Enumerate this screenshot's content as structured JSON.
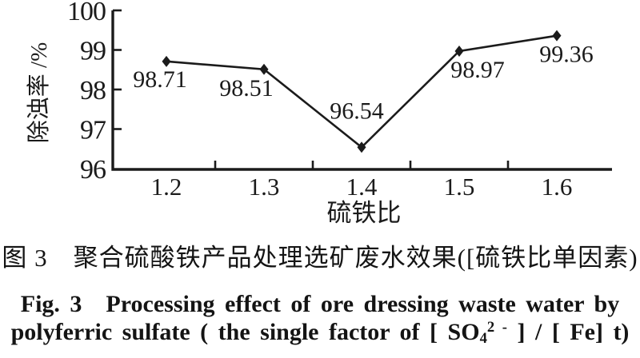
{
  "figure": {
    "caption_cn": "图 3　聚合硫酸铁产品处理选矿废水效果([硫铁比单因素)",
    "caption_en_line1": "Fig. 3　Processing effect of ore dressing waste water by",
    "caption_en_formula": {
      "prefix": "polyferric sulfate ( the single factor of [ SO",
      "sub": "4",
      "sup": "2 -",
      "suffix": " ] / [ Fe] t)"
    }
  },
  "chart_data": {
    "type": "line",
    "title": "",
    "xlabel": "硫铁比",
    "ylabel": "除浊率 /%",
    "categories": [
      "1.2",
      "1.3",
      "1.4",
      "1.5",
      "1.6"
    ],
    "x": [
      1.2,
      1.3,
      1.4,
      1.5,
      1.6
    ],
    "series": [
      {
        "name": "除浊率",
        "values": [
          98.71,
          98.51,
          96.54,
          98.97,
          99.36
        ],
        "data_labels": [
          "98.71",
          "98.51",
          "96.54",
          "98.97",
          "99.36"
        ]
      }
    ],
    "ylim": [
      96,
      100
    ],
    "yticks": [
      96,
      97,
      98,
      99,
      100
    ],
    "grid": false,
    "legend": "none",
    "marker": "filled-diamond",
    "line_color": "#1b1b1b",
    "background": "#ffffff"
  }
}
